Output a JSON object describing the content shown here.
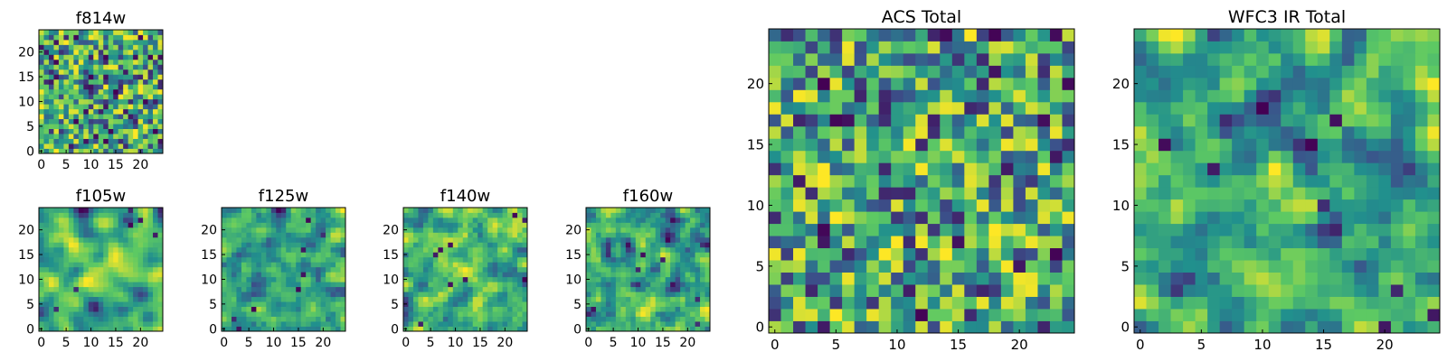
{
  "figure": {
    "background": "#ffffff"
  },
  "colormap": {
    "name": "viridis",
    "stops": [
      "#440154",
      "#3b528b",
      "#21908d",
      "#5dc963",
      "#fde725"
    ]
  },
  "chart_data": [
    {
      "id": "f814w",
      "type": "heatmap",
      "title": "f814w",
      "grid_size": [
        25,
        25
      ],
      "xlim": [
        0,
        25
      ],
      "ylim": [
        0,
        25
      ],
      "xticks": [
        0,
        5,
        10,
        15,
        20
      ],
      "yticks": [
        0,
        5,
        10,
        15,
        20
      ],
      "values_note": "25x25 pixel-value image, relative intensity 0-1",
      "values": []
    },
    {
      "id": "f105w",
      "type": "heatmap",
      "title": "f105w",
      "grid_size": [
        25,
        25
      ],
      "xlim": [
        0,
        25
      ],
      "ylim": [
        0,
        25
      ],
      "xticks": [
        0,
        5,
        10,
        15,
        20
      ],
      "yticks": [
        0,
        5,
        10,
        15,
        20
      ],
      "values": []
    },
    {
      "id": "f125w",
      "type": "heatmap",
      "title": "f125w",
      "grid_size": [
        25,
        25
      ],
      "xlim": [
        0,
        25
      ],
      "ylim": [
        0,
        25
      ],
      "xticks": [
        0,
        5,
        10,
        15,
        20
      ],
      "yticks": [
        0,
        5,
        10,
        15,
        20
      ],
      "values": []
    },
    {
      "id": "f140w",
      "type": "heatmap",
      "title": "f140w",
      "grid_size": [
        25,
        25
      ],
      "xlim": [
        0,
        25
      ],
      "ylim": [
        0,
        25
      ],
      "xticks": [
        0,
        5,
        10,
        15,
        20
      ],
      "yticks": [
        0,
        5,
        10,
        15,
        20
      ],
      "values": []
    },
    {
      "id": "f160w",
      "type": "heatmap",
      "title": "f160w",
      "grid_size": [
        25,
        25
      ],
      "xlim": [
        0,
        25
      ],
      "ylim": [
        0,
        25
      ],
      "xticks": [
        0,
        5,
        10,
        15,
        20
      ],
      "yticks": [
        0,
        5,
        10,
        15,
        20
      ],
      "values": []
    },
    {
      "id": "acs-total",
      "type": "heatmap",
      "title": "ACS Total",
      "grid_size": [
        25,
        25
      ],
      "xlim": [
        0,
        25
      ],
      "ylim": [
        0,
        25
      ],
      "xticks": [
        0,
        5,
        10,
        15,
        20
      ],
      "yticks": [
        0,
        5,
        10,
        15,
        20
      ],
      "values": []
    },
    {
      "id": "wfc3-ir-total",
      "type": "heatmap",
      "title": "WFC3 IR Total",
      "grid_size": [
        25,
        25
      ],
      "xlim": [
        0,
        25
      ],
      "ylim": [
        0,
        25
      ],
      "xticks": [
        0,
        5,
        10,
        15,
        20
      ],
      "yticks": [
        0,
        5,
        10,
        15,
        20
      ],
      "values": []
    }
  ]
}
